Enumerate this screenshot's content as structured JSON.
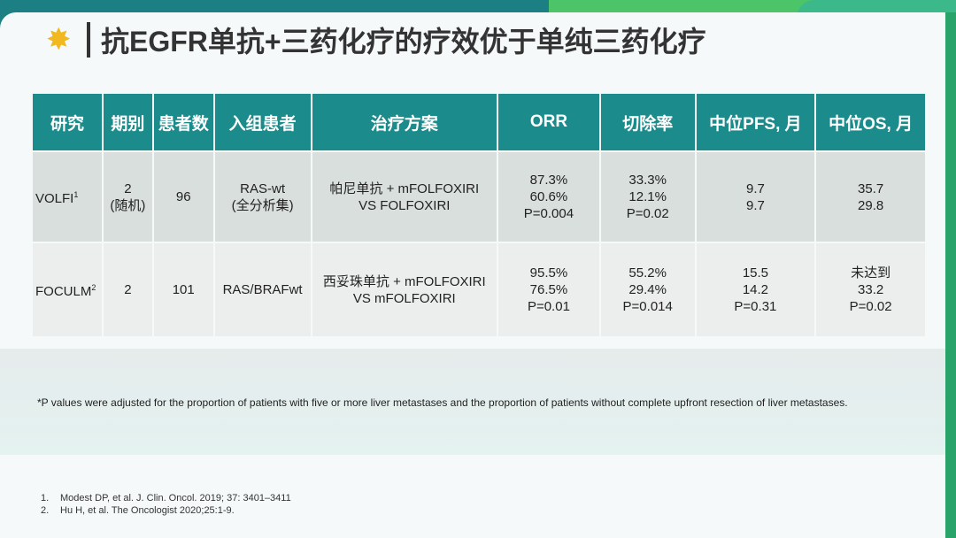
{
  "title": "抗EGFR单抗+三药化疗的疗效优于单纯三药化疗",
  "table": {
    "headers": [
      "研究",
      "期别",
      "患者数",
      "入组患者",
      "治疗方案",
      "ORR",
      "切除率",
      "中位PFS, 月",
      "中位OS, 月"
    ],
    "rows": [
      {
        "study": "VOLFI",
        "sup": "1",
        "phase": "2\n(随机)",
        "n": "96",
        "pop": "RAS-wt\n(全分析集)",
        "regimen": "帕尼单抗 + mFOLFOXIRI\nVS FOLFOXIRI",
        "orr": "87.3%\n60.6%\nP=0.004",
        "resection": "33.3%\n12.1%\nP=0.02",
        "pfs": "9.7\n9.7",
        "os": "35.7\n29.8"
      },
      {
        "study": "FOCULM",
        "sup": "2",
        "phase": "2",
        "n": "101",
        "pop": "RAS/BRAFwt",
        "regimen": "西妥珠单抗 + mFOLFOXIRI\nVS mFOLFOXIRI",
        "orr": "95.5%\n76.5%\nP=0.01",
        "resection": "55.2%\n29.4%\nP=0.014",
        "pfs": "15.5\n14.2\nP=0.31",
        "os": "未达到\n33.2\nP=0.02"
      }
    ]
  },
  "footnote": "*P values were adjusted for the proportion of patients with five or more liver metastases and the proportion of patients without complete upfront resection of liver metastases.",
  "references": [
    {
      "num": "1.",
      "text": "Modest DP, et al. J. Clin. Oncol. 2019; 37: 3401–3411"
    },
    {
      "num": "2.",
      "text": "Hu H, et al. The Oncologist 2020;25:1-9."
    }
  ]
}
